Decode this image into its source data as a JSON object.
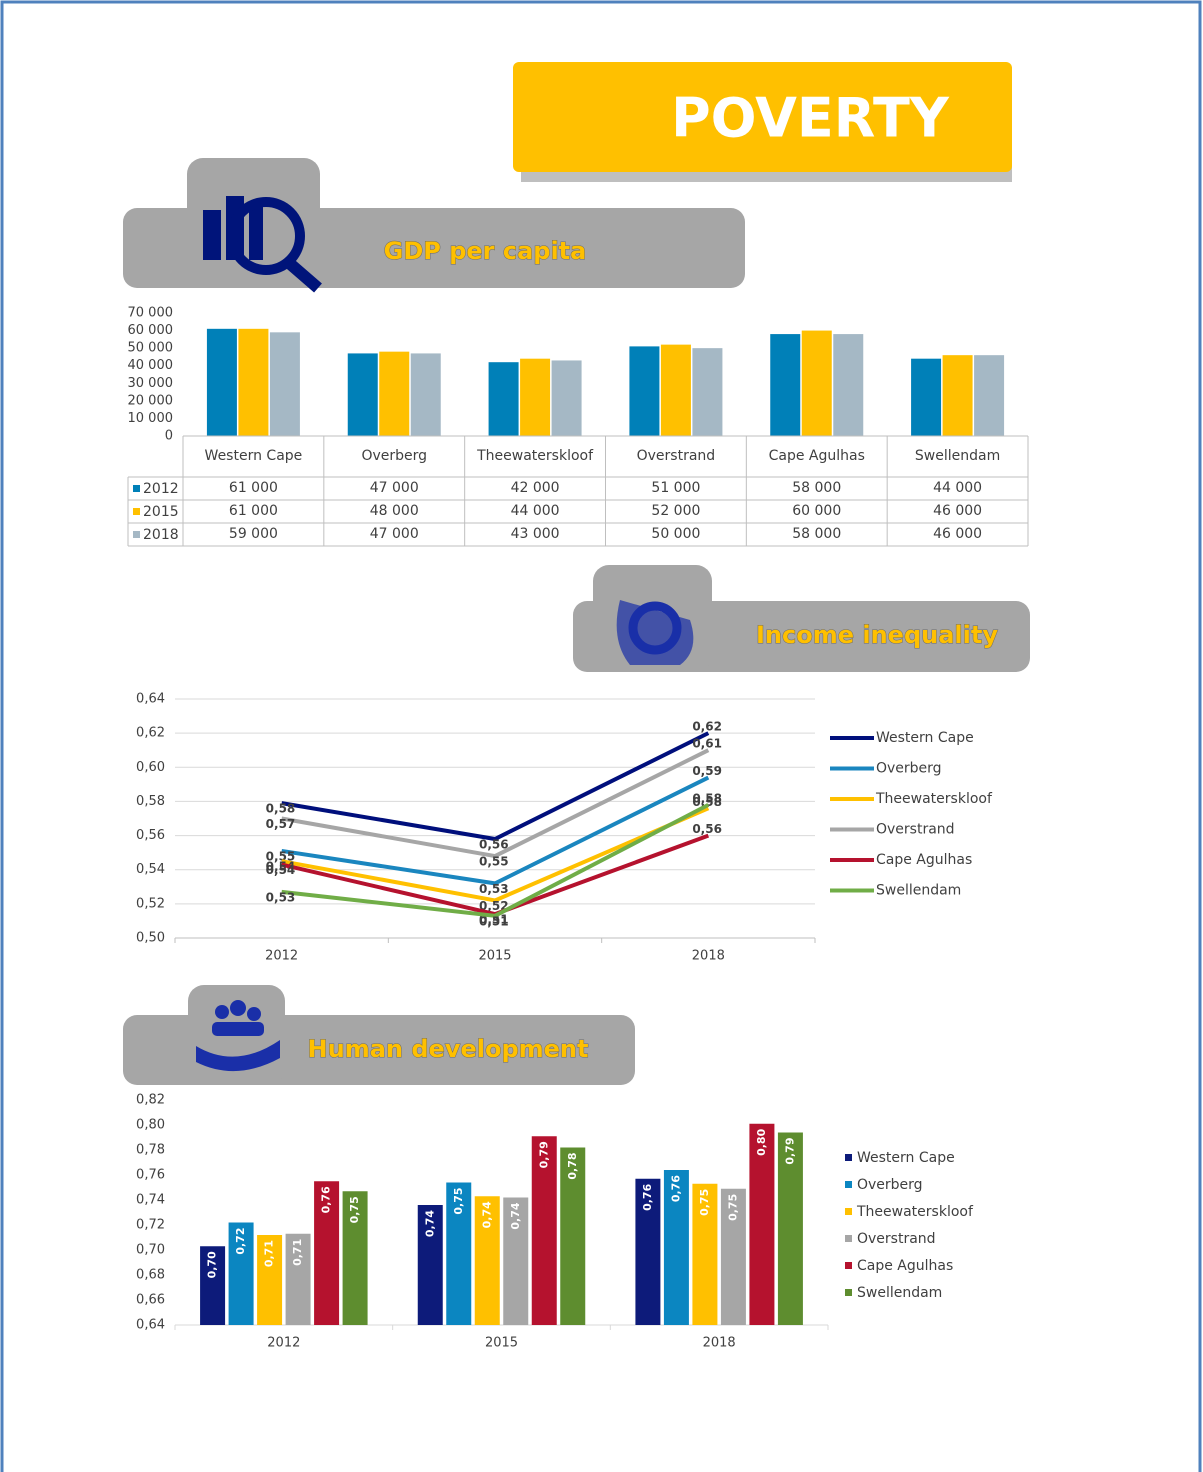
{
  "header": {
    "title": "POVERTY"
  },
  "chart_data": [
    {
      "type": "bar",
      "title": "GDP per capita",
      "categories": [
        "Western Cape",
        "Overberg",
        "Theewaterskloof",
        "Overstrand",
        "Cape Agulhas",
        "Swellendam"
      ],
      "series": [
        {
          "name": "2012",
          "color": "#0080b8",
          "values": [
            61000,
            47000,
            42000,
            51000,
            58000,
            44000
          ],
          "value_labels": [
            "61 000",
            "47 000",
            "42 000",
            "51 000",
            "58 000",
            "44 000"
          ]
        },
        {
          "name": "2015",
          "color": "#ffc000",
          "values": [
            61000,
            48000,
            44000,
            52000,
            60000,
            46000
          ],
          "value_labels": [
            "61 000",
            "48 000",
            "44 000",
            "52 000",
            "60 000",
            "46 000"
          ]
        },
        {
          "name": "2018",
          "color": "#a5b8c5",
          "values": [
            59000,
            47000,
            43000,
            50000,
            58000,
            46000
          ],
          "value_labels": [
            "59 000",
            "47 000",
            "43 000",
            "50 000",
            "58 000",
            "46 000"
          ]
        }
      ],
      "ylim": [
        0,
        70000
      ],
      "yticks": [
        0,
        {
          "value": 10000,
          "label": "10 000"
        },
        {
          "value": 20000,
          "label": "20 000"
        },
        {
          "value": 30000,
          "label": "30 000"
        },
        {
          "value": 40000,
          "label": "40 000"
        },
        {
          "value": 50000,
          "label": "50 000"
        },
        {
          "value": 60000,
          "label": "60 000"
        },
        {
          "value": 70000,
          "label": "70 000"
        }
      ],
      "grid": false
    },
    {
      "type": "line",
      "title": "Income inequality",
      "categories": [
        "2012",
        "2015",
        "2018"
      ],
      "series": [
        {
          "name": "Western Cape",
          "color": "#000f7c",
          "values": [
            0.579,
            0.558,
            0.62
          ],
          "value_labels": [
            "0,58",
            "0,56",
            "0,62"
          ]
        },
        {
          "name": "Overberg",
          "color": "#1a86bf",
          "values": [
            0.551,
            0.532,
            0.594
          ],
          "value_labels": [
            "0,55",
            "0,53",
            "0,59"
          ]
        },
        {
          "name": "Theewaterskloof",
          "color": "#ffc000",
          "values": [
            0.545,
            0.522,
            0.576
          ],
          "value_labels": [
            "0,54",
            "0,52",
            "0,58"
          ]
        },
        {
          "name": "Overstrand",
          "color": "#a6a6a6",
          "values": [
            0.57,
            0.548,
            0.61
          ],
          "value_labels": [
            "0,57",
            "0,55",
            "0,61"
          ]
        },
        {
          "name": "Cape Agulhas",
          "color": "#b5122e",
          "values": [
            0.543,
            0.514,
            0.56
          ],
          "value_labels": [
            "0,54",
            "0,51",
            "0,56"
          ]
        },
        {
          "name": "Swellendam",
          "color": "#70ad47",
          "values": [
            0.527,
            0.513,
            0.578
          ],
          "value_labels": [
            "0,53",
            "0,51",
            "0,58"
          ]
        }
      ],
      "ylim": [
        0.5,
        0.64
      ],
      "yticks": [
        {
          "value": 0.5,
          "label": "0,50"
        },
        {
          "value": 0.52,
          "label": "0,52"
        },
        {
          "value": 0.54,
          "label": "0,54"
        },
        {
          "value": 0.56,
          "label": "0,56"
        },
        {
          "value": 0.58,
          "label": "0,58"
        },
        {
          "value": 0.6,
          "label": "0,60"
        },
        {
          "value": 0.62,
          "label": "0,62"
        },
        {
          "value": 0.64,
          "label": "0,64"
        }
      ],
      "grid": true
    },
    {
      "type": "bar",
      "title": "Human development",
      "categories": [
        "2012",
        "2015",
        "2018"
      ],
      "series": [
        {
          "name": "Western Cape",
          "color": "#0d1b7a",
          "values": [
            0.703,
            0.736,
            0.757
          ],
          "value_labels": [
            "0,70",
            "0,74",
            "0,76"
          ]
        },
        {
          "name": "Overberg",
          "color": "#0b86c1",
          "values": [
            0.722,
            0.754,
            0.764
          ],
          "value_labels": [
            "0,72",
            "0,75",
            "0,76"
          ]
        },
        {
          "name": "Theewaterskloof",
          "color": "#ffc000",
          "values": [
            0.712,
            0.743,
            0.753
          ],
          "value_labels": [
            "0,71",
            "0,74",
            "0,75"
          ]
        },
        {
          "name": "Overstrand",
          "color": "#a6a6a6",
          "values": [
            0.713,
            0.742,
            0.749
          ],
          "value_labels": [
            "0,71",
            "0,74",
            "0,75"
          ]
        },
        {
          "name": "Cape Agulhas",
          "color": "#b5122e",
          "values": [
            0.755,
            0.791,
            0.801
          ],
          "value_labels": [
            "0,76",
            "0,79",
            "0,80"
          ]
        },
        {
          "name": "Swellendam",
          "color": "#5e8d2f",
          "values": [
            0.747,
            0.782,
            0.794
          ],
          "value_labels": [
            "0,75",
            "0,78",
            "0,79"
          ]
        }
      ],
      "ylim": [
        0.64,
        0.82
      ],
      "yticks": [
        {
          "value": 0.64,
          "label": "0,64"
        },
        {
          "value": 0.66,
          "label": "0,66"
        },
        {
          "value": 0.68,
          "label": "0,68"
        },
        {
          "value": 0.7,
          "label": "0,70"
        },
        {
          "value": 0.72,
          "label": "0,72"
        },
        {
          "value": 0.74,
          "label": "0,74"
        },
        {
          "value": 0.76,
          "label": "0,76"
        },
        {
          "value": 0.78,
          "label": "0,78"
        },
        {
          "value": 0.8,
          "label": "0,80"
        },
        {
          "value": 0.82,
          "label": "0,82"
        }
      ],
      "grid": false
    }
  ]
}
